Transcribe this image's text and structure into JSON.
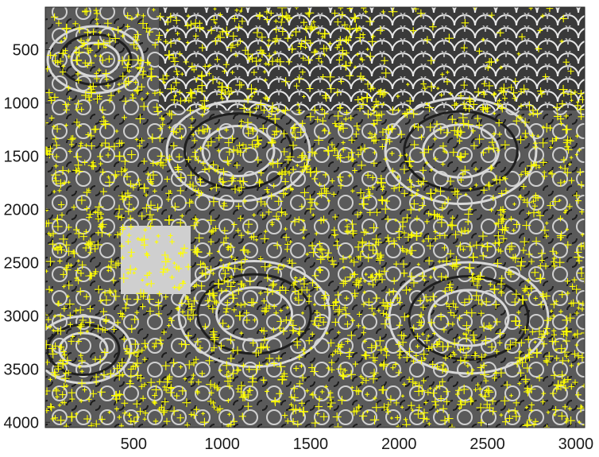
{
  "chart_data": {
    "type": "scatter",
    "title": "",
    "xlabel": "",
    "ylabel": "",
    "xlim": [
      0,
      3050
    ],
    "ylim": [
      4050,
      100
    ],
    "y_axis_reversed": true,
    "grid": false,
    "legend": "none",
    "x_ticks": [
      500,
      1000,
      1500,
      2000,
      2500,
      3000
    ],
    "y_ticks": [
      500,
      1000,
      1500,
      2000,
      2500,
      3000,
      3500,
      4000
    ],
    "background": "grayscale ornamental lace-pattern image (approx. 3050 x 4050 px)",
    "series": [
      {
        "marker": "+",
        "color": "#ffff00",
        "description": "dense yellow feature-point markers covering the image",
        "x": [
          120,
          180,
          260,
          340,
          420,
          560,
          700,
          860,
          980,
          1100,
          1220,
          1340,
          1460,
          1580,
          1700,
          1820,
          1940,
          2060,
          2180,
          2300,
          2420,
          2540,
          2660,
          2780,
          2900,
          150,
          300,
          600,
          900,
          1200,
          1500,
          1800,
          2100,
          2400,
          2700,
          2950,
          100,
          400,
          700,
          1000,
          1300,
          1600,
          1900,
          2200,
          2500,
          2800
        ],
        "y": [
          300,
          600,
          900,
          1200,
          1500,
          1800,
          2100,
          2400,
          2700,
          3000,
          3300,
          3600,
          3900,
          350,
          650,
          950,
          1250,
          1550,
          1850,
          2150,
          2450,
          2750,
          3050,
          3350,
          3650,
          3950,
          450,
          750,
          1050,
          1350,
          1650,
          1950,
          2250,
          2550,
          2850,
          3150,
          3450,
          3750,
          550,
          850,
          1150,
          1450,
          1750,
          2050,
          2350,
          2650
        ]
      }
    ]
  },
  "colors": {
    "marker": "#ffff00",
    "axis": "#262626",
    "image_dark": "#1e1e1e",
    "image_light": "#d8d8d8"
  }
}
